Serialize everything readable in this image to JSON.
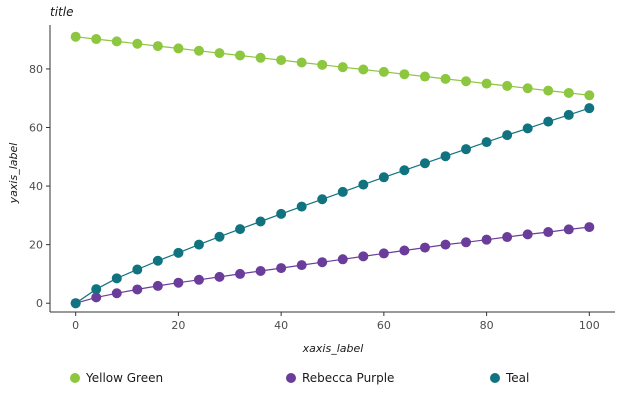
{
  "chart_data": {
    "type": "scatter",
    "title": "title",
    "xlabel": "xaxis_label",
    "ylabel": "yaxis_label",
    "xlim": [
      -5,
      105
    ],
    "ylim": [
      -3,
      95
    ],
    "x_ticks": [
      0,
      20,
      40,
      60,
      80,
      100
    ],
    "y_ticks": [
      0,
      20,
      40,
      60,
      80
    ],
    "grid": false,
    "legend_position": "bottom",
    "series": [
      {
        "name": "Yellow Green",
        "color": "#8dc63f",
        "points": [
          [
            0,
            91
          ],
          [
            4,
            90.2
          ],
          [
            8,
            89.4
          ],
          [
            12,
            88.6
          ],
          [
            16,
            87.8
          ],
          [
            20,
            87
          ],
          [
            24,
            86.2
          ],
          [
            28,
            85.4
          ],
          [
            32,
            84.6
          ],
          [
            36,
            83.8
          ],
          [
            40,
            83
          ],
          [
            44,
            82.2
          ],
          [
            48,
            81.4
          ],
          [
            52,
            80.6
          ],
          [
            56,
            79.8
          ],
          [
            60,
            79
          ],
          [
            64,
            78.2
          ],
          [
            68,
            77.4
          ],
          [
            72,
            76.6
          ],
          [
            76,
            75.8
          ],
          [
            80,
            75
          ],
          [
            84,
            74.2
          ],
          [
            88,
            73.4
          ],
          [
            92,
            72.6
          ],
          [
            96,
            71.8
          ],
          [
            100,
            71
          ]
        ]
      },
      {
        "name": "Rebecca Purple",
        "color": "#6a3d9a",
        "points": [
          [
            0,
            0
          ],
          [
            4,
            2
          ],
          [
            8,
            3.4
          ],
          [
            12,
            4.7
          ],
          [
            16,
            5.9
          ],
          [
            20,
            7
          ],
          [
            24,
            8
          ],
          [
            28,
            9
          ],
          [
            32,
            10
          ],
          [
            36,
            11
          ],
          [
            40,
            12
          ],
          [
            44,
            13
          ],
          [
            48,
            14
          ],
          [
            52,
            15
          ],
          [
            56,
            16
          ],
          [
            60,
            17
          ],
          [
            64,
            18
          ],
          [
            68,
            19
          ],
          [
            72,
            20
          ],
          [
            76,
            20.8
          ],
          [
            80,
            21.7
          ],
          [
            84,
            22.6
          ],
          [
            88,
            23.5
          ],
          [
            92,
            24.3
          ],
          [
            96,
            25.2
          ],
          [
            100,
            26
          ]
        ]
      },
      {
        "name": "Teal",
        "color": "#10737f",
        "points": [
          [
            0,
            0
          ],
          [
            4,
            4.8
          ],
          [
            8,
            8.5
          ],
          [
            12,
            11.5
          ],
          [
            16,
            14.5
          ],
          [
            20,
            17.2
          ],
          [
            24,
            20
          ],
          [
            28,
            22.7
          ],
          [
            32,
            25.3
          ],
          [
            36,
            27.9
          ],
          [
            40,
            30.5
          ],
          [
            44,
            33
          ],
          [
            48,
            35.5
          ],
          [
            52,
            38
          ],
          [
            56,
            40.5
          ],
          [
            60,
            43
          ],
          [
            64,
            45.4
          ],
          [
            68,
            47.8
          ],
          [
            72,
            50.2
          ],
          [
            76,
            52.6
          ],
          [
            80,
            55
          ],
          [
            84,
            57.4
          ],
          [
            88,
            59.7
          ],
          [
            92,
            62
          ],
          [
            96,
            64.3
          ],
          [
            100,
            66.6
          ]
        ]
      }
    ]
  }
}
